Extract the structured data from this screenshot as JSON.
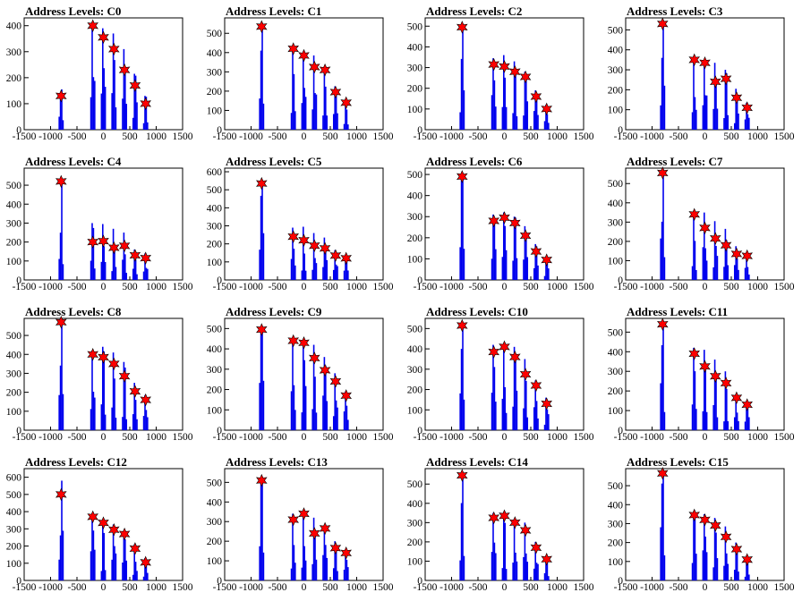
{
  "chart_data": [
    {
      "type": "bar",
      "title": "Address Levels: C0",
      "xlim": [
        -1500,
        1500
      ],
      "ylim": [
        0,
        430
      ],
      "yticks": [
        0,
        100,
        200,
        300,
        400
      ],
      "xticks": [
        -1500,
        -1000,
        -500,
        0,
        500,
        1000,
        1500
      ],
      "x": [
        -800,
        -200,
        0,
        200,
        400,
        600,
        800
      ],
      "values": [
        130,
        400,
        355,
        310,
        230,
        170,
        100
      ],
      "peaks": [
        155,
        410,
        390,
        370,
        310,
        215,
        130
      ]
    },
    {
      "type": "bar",
      "title": "Address Levels: C1",
      "xlim": [
        -1500,
        1500
      ],
      "ylim": [
        0,
        580
      ],
      "yticks": [
        0,
        100,
        200,
        300,
        400,
        500
      ],
      "xticks": [
        -1500,
        -1000,
        -500,
        0,
        500,
        1000,
        1500
      ],
      "x": [
        -800,
        -200,
        0,
        200,
        400,
        600,
        800
      ],
      "values": [
        535,
        420,
        385,
        325,
        310,
        195,
        140
      ],
      "peaks": [
        545,
        415,
        405,
        385,
        315,
        225,
        150
      ]
    },
    {
      "type": "bar",
      "title": "Address Levels: C2",
      "xlim": [
        -1500,
        1500
      ],
      "ylim": [
        0,
        540
      ],
      "yticks": [
        0,
        100,
        200,
        300,
        400,
        500
      ],
      "xticks": [
        -1500,
        -1000,
        -500,
        0,
        500,
        1000,
        1500
      ],
      "x": [
        -800,
        -200,
        0,
        200,
        400,
        600,
        800
      ],
      "values": [
        495,
        315,
        305,
        280,
        255,
        160,
        100
      ],
      "peaks": [
        505,
        345,
        360,
        330,
        280,
        190,
        120
      ]
    },
    {
      "type": "bar",
      "title": "Address Levels: C3",
      "xlim": [
        -1500,
        1500
      ],
      "ylim": [
        0,
        560
      ],
      "yticks": [
        0,
        100,
        200,
        300,
        400,
        500
      ],
      "xticks": [
        -1500,
        -1000,
        -500,
        0,
        500,
        1000,
        1500
      ],
      "x": [
        -800,
        -200,
        0,
        200,
        400,
        600,
        800
      ],
      "values": [
        530,
        350,
        335,
        240,
        255,
        160,
        110
      ],
      "peaks": [
        540,
        360,
        345,
        335,
        300,
        205,
        135
      ]
    },
    {
      "type": "bar",
      "title": "Address Levels: C4",
      "xlim": [
        -1500,
        1500
      ],
      "ylim": [
        0,
        590
      ],
      "yticks": [
        0,
        100,
        200,
        300,
        400,
        500
      ],
      "xticks": [
        -1500,
        -1000,
        -500,
        0,
        500,
        1000,
        1500
      ],
      "x": [
        -800,
        -200,
        0,
        200,
        400,
        600,
        800
      ],
      "values": [
        520,
        200,
        205,
        170,
        180,
        130,
        115
      ],
      "peaks": [
        530,
        300,
        295,
        270,
        250,
        160,
        140
      ]
    },
    {
      "type": "bar",
      "title": "Address Levels: C5",
      "xlim": [
        -1500,
        1500
      ],
      "ylim": [
        0,
        620
      ],
      "yticks": [
        0,
        100,
        200,
        300,
        400,
        500,
        600
      ],
      "xticks": [
        -1500,
        -1000,
        -500,
        0,
        500,
        1000,
        1500
      ],
      "x": [
        -800,
        -200,
        0,
        200,
        400,
        600,
        800
      ],
      "values": [
        535,
        240,
        220,
        190,
        175,
        135,
        120
      ],
      "peaks": [
        545,
        290,
        295,
        260,
        235,
        165,
        135
      ]
    },
    {
      "type": "bar",
      "title": "Address Levels: C6",
      "xlim": [
        -1500,
        1500
      ],
      "ylim": [
        0,
        530
      ],
      "yticks": [
        0,
        100,
        200,
        300,
        400,
        500
      ],
      "xticks": [
        -1500,
        -1000,
        -500,
        0,
        500,
        1000,
        1500
      ],
      "x": [
        -800,
        -200,
        0,
        200,
        400,
        600,
        800
      ],
      "values": [
        490,
        280,
        295,
        270,
        210,
        135,
        95
      ],
      "peaks": [
        500,
        310,
        320,
        300,
        255,
        170,
        110
      ]
    },
    {
      "type": "bar",
      "title": "Address Levels: C7",
      "xlim": [
        -1500,
        1500
      ],
      "ylim": [
        0,
        580
      ],
      "yticks": [
        0,
        100,
        200,
        300,
        400,
        500
      ],
      "xticks": [
        -1500,
        -1000,
        -500,
        0,
        500,
        1000,
        1500
      ],
      "x": [
        -800,
        -200,
        0,
        200,
        400,
        600,
        800
      ],
      "values": [
        555,
        340,
        270,
        215,
        180,
        135,
        125
      ],
      "peaks": [
        565,
        325,
        350,
        305,
        265,
        175,
        135
      ]
    },
    {
      "type": "bar",
      "title": "Address Levels: C8",
      "xlim": [
        -1500,
        1500
      ],
      "ylim": [
        0,
        590
      ],
      "yticks": [
        0,
        100,
        200,
        300,
        400,
        500
      ],
      "xticks": [
        -1500,
        -1000,
        -500,
        0,
        500,
        1000,
        1500
      ],
      "x": [
        -800,
        -200,
        0,
        200,
        400,
        600,
        800
      ],
      "values": [
        570,
        400,
        385,
        350,
        285,
        205,
        160
      ],
      "peaks": [
        580,
        420,
        440,
        410,
        360,
        250,
        185
      ]
    },
    {
      "type": "bar",
      "title": "Address Levels: C9",
      "xlim": [
        -1500,
        1500
      ],
      "ylim": [
        0,
        550
      ],
      "yticks": [
        0,
        100,
        200,
        300,
        400,
        500
      ],
      "xticks": [
        -1500,
        -1000,
        -500,
        0,
        500,
        1000,
        1500
      ],
      "x": [
        -800,
        -200,
        0,
        200,
        400,
        600,
        800
      ],
      "values": [
        495,
        440,
        430,
        355,
        295,
        240,
        170
      ],
      "peaks": [
        505,
        445,
        445,
        420,
        360,
        280,
        190
      ]
    },
    {
      "type": "bar",
      "title": "Address Levels: C10",
      "xlim": [
        -1500,
        1500
      ],
      "ylim": [
        0,
        550
      ],
      "yticks": [
        0,
        100,
        200,
        300,
        400,
        500
      ],
      "xticks": [
        -1500,
        -1000,
        -500,
        0,
        500,
        1000,
        1500
      ],
      "x": [
        -800,
        -200,
        0,
        200,
        400,
        600,
        800
      ],
      "values": [
        515,
        385,
        410,
        360,
        275,
        220,
        130
      ],
      "peaks": [
        525,
        420,
        425,
        410,
        350,
        245,
        160
      ]
    },
    {
      "type": "bar",
      "title": "Address Levels: C11",
      "xlim": [
        -1500,
        1500
      ],
      "ylim": [
        0,
        570
      ],
      "yticks": [
        0,
        100,
        200,
        300,
        400,
        500
      ],
      "xticks": [
        -1500,
        -1000,
        -500,
        0,
        500,
        1000,
        1500
      ],
      "x": [
        -800,
        -200,
        0,
        200,
        400,
        600,
        800
      ],
      "values": [
        540,
        390,
        325,
        275,
        240,
        165,
        130
      ],
      "peaks": [
        550,
        420,
        410,
        360,
        300,
        180,
        145
      ]
    },
    {
      "type": "bar",
      "title": "Address Levels: C12",
      "xlim": [
        -1500,
        1500
      ],
      "ylim": [
        0,
        650
      ],
      "yticks": [
        0,
        100,
        200,
        300,
        400,
        500,
        600
      ],
      "xticks": [
        -1500,
        -1000,
        -500,
        0,
        500,
        1000,
        1500
      ],
      "x": [
        -800,
        -200,
        0,
        200,
        400,
        600,
        800
      ],
      "values": [
        500,
        370,
        335,
        295,
        270,
        185,
        105
      ],
      "peaks": [
        580,
        380,
        350,
        325,
        290,
        210,
        130
      ]
    },
    {
      "type": "bar",
      "title": "Address Levels: C13",
      "xlim": [
        -1500,
        1500
      ],
      "ylim": [
        0,
        570
      ],
      "yticks": [
        0,
        100,
        200,
        300,
        400,
        500
      ],
      "xticks": [
        -1500,
        -1000,
        -500,
        0,
        500,
        1000,
        1500
      ],
      "x": [
        -800,
        -200,
        0,
        200,
        400,
        600,
        800
      ],
      "values": [
        510,
        310,
        340,
        240,
        265,
        165,
        140
      ],
      "peaks": [
        520,
        340,
        345,
        320,
        280,
        200,
        150
      ]
    },
    {
      "type": "bar",
      "title": "Address Levels: C14",
      "xlim": [
        -1500,
        1500
      ],
      "ylim": [
        0,
        580
      ],
      "yticks": [
        0,
        100,
        200,
        300,
        400,
        500
      ],
      "xticks": [
        -1500,
        -1000,
        -500,
        0,
        500,
        1000,
        1500
      ],
      "x": [
        -800,
        -200,
        0,
        200,
        400,
        600,
        800
      ],
      "values": [
        545,
        325,
        335,
        300,
        260,
        170,
        110
      ],
      "peaks": [
        555,
        350,
        345,
        320,
        300,
        200,
        125
      ]
    },
    {
      "type": "bar",
      "title": "Address Levels: C15",
      "xlim": [
        -1500,
        1500
      ],
      "ylim": [
        0,
        590
      ],
      "yticks": [
        0,
        100,
        200,
        300,
        400,
        500
      ],
      "xticks": [
        -1500,
        -1000,
        -500,
        0,
        500,
        1000,
        1500
      ],
      "x": [
        -800,
        -200,
        0,
        200,
        400,
        600,
        800
      ],
      "values": [
        565,
        345,
        320,
        290,
        230,
        165,
        110
      ],
      "peaks": [
        575,
        360,
        350,
        330,
        285,
        200,
        130
      ]
    }
  ],
  "colors": {
    "histogram": "#0000ee",
    "marker": "#ff0000",
    "marker_outline": "#000000",
    "axis": "#000000"
  }
}
